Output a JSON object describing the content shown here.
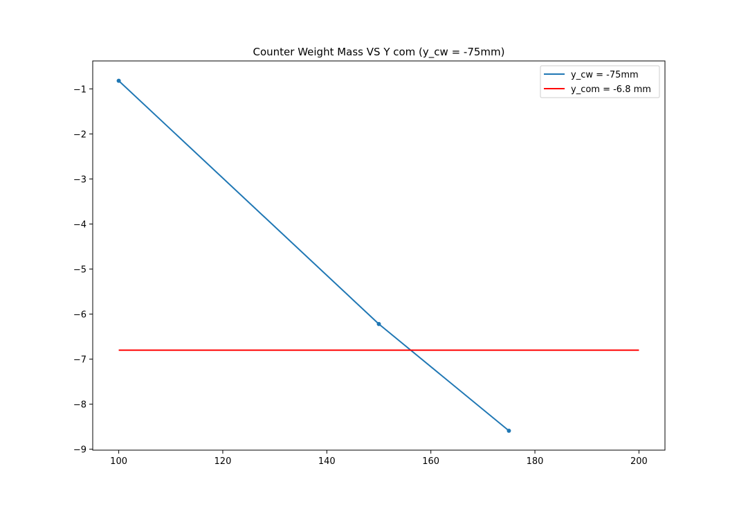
{
  "chart_data": {
    "type": "line",
    "title": "Counter Weight Mass VS  Y com  (y_cw = -75mm)",
    "xlabel": "",
    "ylabel": "",
    "xlim": [
      95,
      205
    ],
    "ylim": [
      -9.02,
      -0.38
    ],
    "x_ticks": [
      100,
      120,
      140,
      160,
      180,
      200
    ],
    "y_ticks": [
      -1,
      -2,
      -3,
      -4,
      -5,
      -6,
      -7,
      -8,
      -9
    ],
    "x_tick_labels": [
      "100",
      "120",
      "140",
      "160",
      "180",
      "200"
    ],
    "y_tick_labels": [
      "−1",
      "−2",
      "−3",
      "−4",
      "−5",
      "−6",
      "−7",
      "−8",
      "−9"
    ],
    "grid": false,
    "legend_position": "top-right",
    "series": [
      {
        "name": "y_cw = -75mm",
        "color": "#1f77b4",
        "markers": true,
        "points": [
          {
            "x": 100,
            "y": -0.82
          },
          {
            "x": 150,
            "y": -6.22
          },
          {
            "x": 175,
            "y": -8.59
          }
        ]
      },
      {
        "name": "y_com = -6.8 mm",
        "color": "#ff0000",
        "markers": false,
        "points": [
          {
            "x": 100,
            "y": -6.8
          },
          {
            "x": 200,
            "y": -6.8
          }
        ]
      }
    ]
  }
}
